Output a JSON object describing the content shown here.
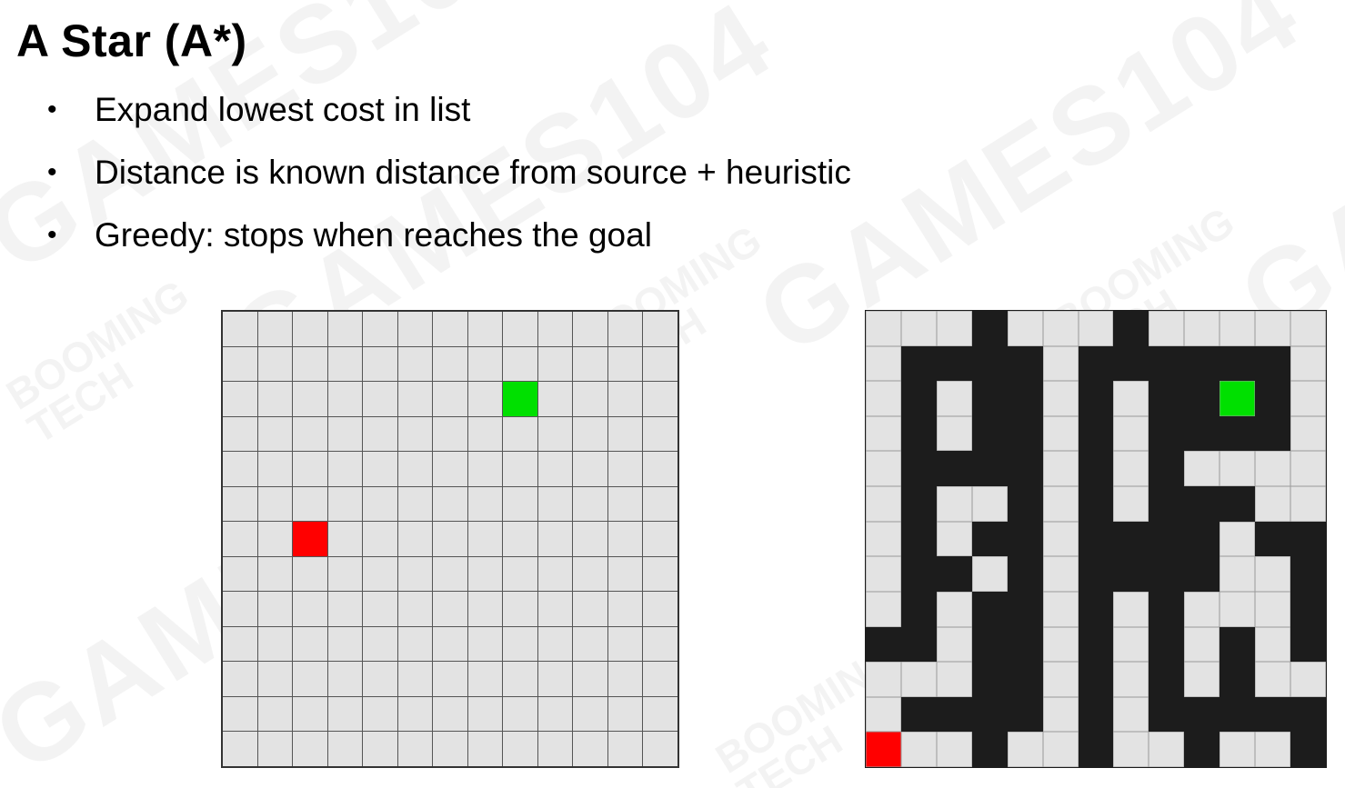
{
  "slide": {
    "title": "A Star (A*)",
    "bullets": [
      "Expand lowest cost in list",
      "Distance is known distance from source + heuristic",
      "Greedy: stops when reaches the goal"
    ]
  },
  "watermark": {
    "brand": "GAMES104",
    "logo_text": "BOOMING TECH"
  },
  "colors": {
    "start": "#ff0000",
    "goal": "#00e000",
    "wall": "#1c1c1c",
    "floor": "#e3e3e3"
  },
  "open_grid": {
    "rows": 13,
    "cols": 13,
    "start": [
      6,
      2
    ],
    "goal": [
      2,
      8
    ]
  },
  "maze": {
    "rows": 13,
    "cols": 13,
    "start": [
      12,
      0
    ],
    "goal": [
      2,
      10
    ],
    "layout": [
      "...#...#.....",
      ".####.######.",
      ".#.##.#.##.#.",
      ".#.##.#.####.",
      ".####.#.#....",
      ".#..#.#.###..",
      ".#.##.####.##",
      ".##.#.####..#",
      ".#.##.#.#...#",
      "##.##.#.#.#.#",
      "...##.#.#.#..",
      ".####.#.#####",
      "...#..#..#..#"
    ]
  }
}
